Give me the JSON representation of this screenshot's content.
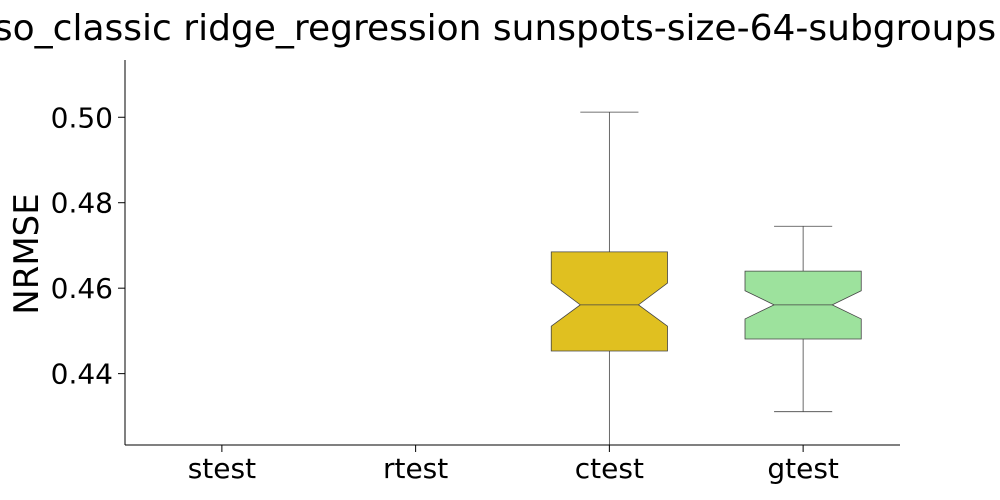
{
  "chart_data": {
    "type": "box",
    "title": "so_classic ridge_regression sunspots-size-64-subgroups",
    "xlabel": "",
    "ylabel": "NRMSE",
    "categories": [
      "stest",
      "rtest",
      "ctest",
      "gtest"
    ],
    "ylim": [
      0.4233,
      0.5134
    ],
    "yticks": [
      0.44,
      0.46,
      0.48,
      0.5
    ],
    "ytick_labels": [
      "0.44",
      "0.46",
      "0.48",
      "0.50"
    ],
    "notched": true,
    "grid": false,
    "boxes": [
      {
        "category": "stest",
        "present": false
      },
      {
        "category": "rtest",
        "present": false
      },
      {
        "category": "ctest",
        "present": true,
        "color": "#e0c020",
        "whisker_low": 0.4225,
        "q1": 0.4453,
        "median": 0.4561,
        "q3": 0.4685,
        "whisker_high": 0.5012,
        "notch_low": 0.4511,
        "notch_high": 0.4612
      },
      {
        "category": "gtest",
        "present": true,
        "color": "#9de29d",
        "whisker_low": 0.4311,
        "q1": 0.4481,
        "median": 0.4561,
        "q3": 0.464,
        "whisker_high": 0.4745,
        "notch_low": 0.4528,
        "notch_high": 0.4594
      }
    ]
  }
}
